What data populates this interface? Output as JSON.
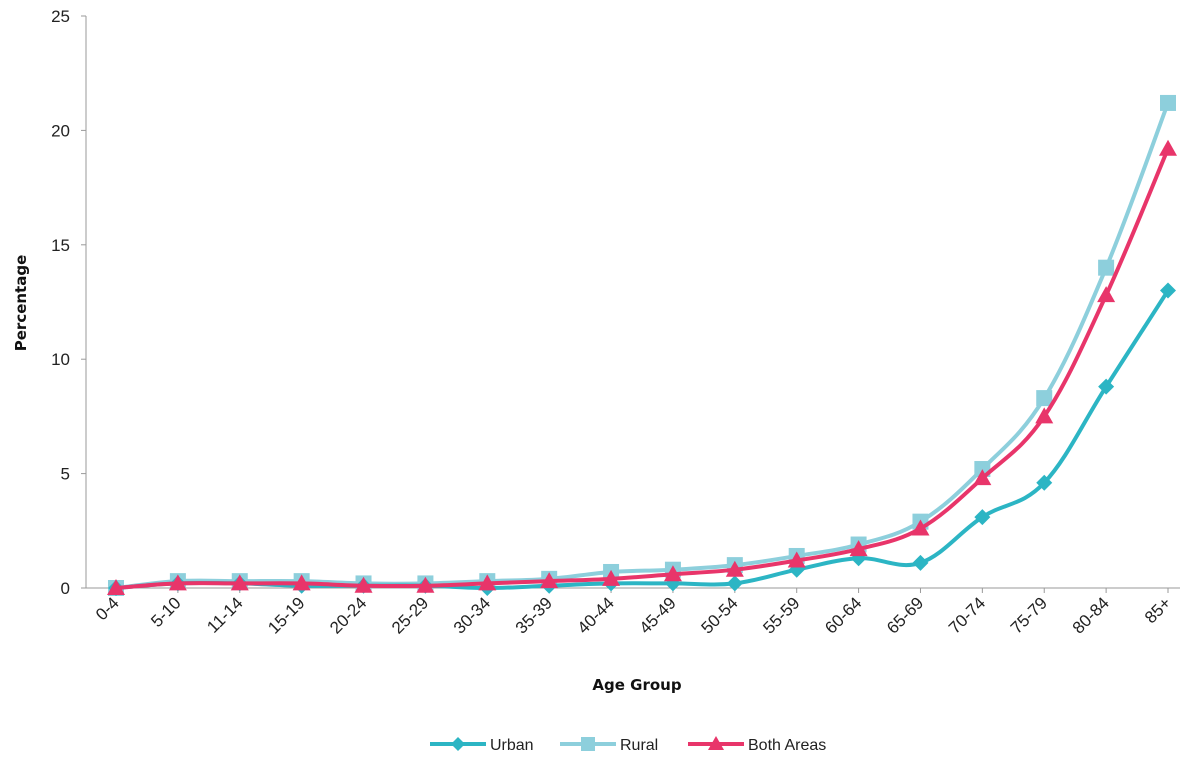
{
  "chart_data": {
    "type": "line",
    "title": "",
    "xlabel": "Age Group",
    "ylabel": "Percentage",
    "ylim": [
      0,
      25
    ],
    "yticks": [
      0,
      5,
      10,
      15,
      20,
      25
    ],
    "grid": false,
    "legend_position": "bottom",
    "categories": [
      "0-4",
      "5-10",
      "11-14",
      "15-19",
      "20-24",
      "25-29",
      "30-34",
      "35-39",
      "40-44",
      "45-49",
      "50-54",
      "55-59",
      "60-64",
      "65-69",
      "70-74",
      "75-79",
      "80-84",
      "85+"
    ],
    "series": [
      {
        "name": "Urban",
        "color": "#2cb5c4",
        "marker": "diamond",
        "values": [
          0.0,
          0.2,
          0.2,
          0.1,
          0.1,
          0.1,
          0.0,
          0.1,
          0.2,
          0.2,
          0.2,
          0.8,
          1.3,
          1.1,
          3.1,
          4.6,
          8.8,
          13.0
        ]
      },
      {
        "name": "Rural",
        "color": "#8dcfdc",
        "marker": "square",
        "values": [
          0.0,
          0.3,
          0.3,
          0.3,
          0.2,
          0.2,
          0.3,
          0.4,
          0.7,
          0.8,
          1.0,
          1.4,
          1.9,
          2.9,
          5.2,
          8.3,
          14.0,
          21.2
        ]
      },
      {
        "name": "Both Areas",
        "color": "#e8356a",
        "marker": "triangle",
        "values": [
          0.0,
          0.2,
          0.2,
          0.2,
          0.1,
          0.1,
          0.2,
          0.3,
          0.4,
          0.6,
          0.8,
          1.2,
          1.7,
          2.6,
          4.8,
          7.5,
          12.8,
          19.2
        ]
      }
    ]
  }
}
